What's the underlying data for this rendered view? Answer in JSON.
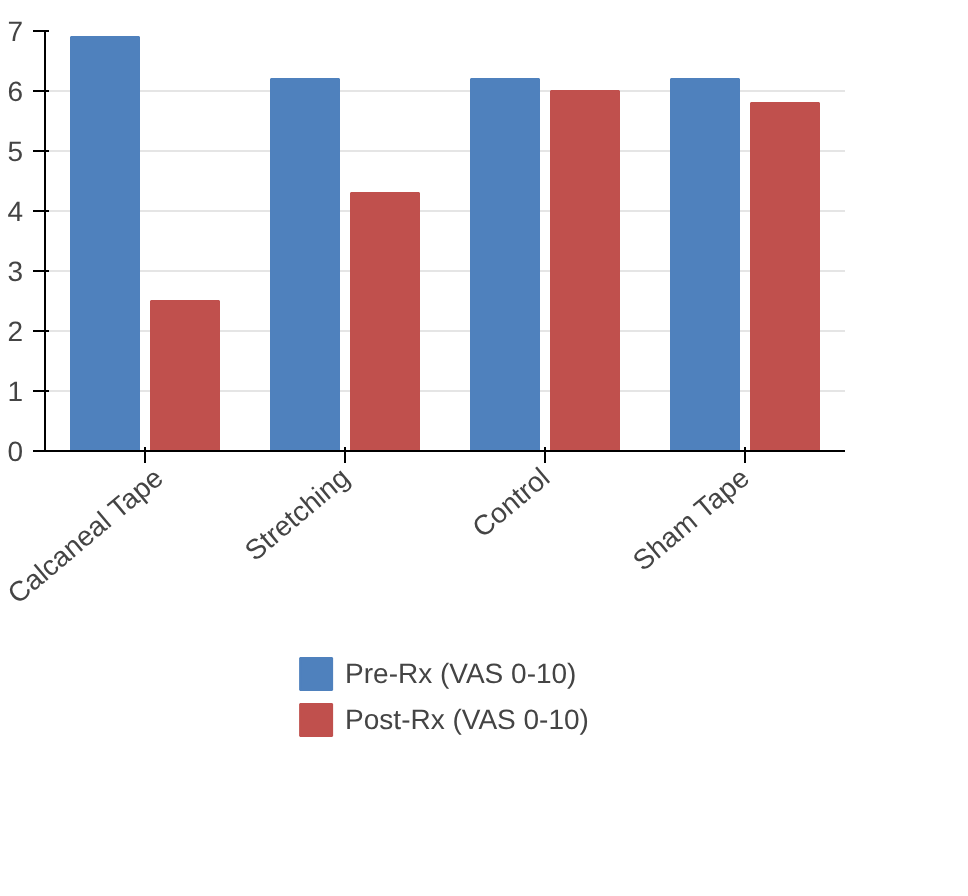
{
  "chart_data": {
    "type": "bar",
    "categories": [
      "Calcaneal Tape",
      "Stretching",
      "Control",
      "Sham Tape"
    ],
    "series": [
      {
        "name": "Pre-Rx (VAS 0-10)",
        "color": "#4f81bd",
        "values": [
          6.9,
          6.2,
          6.2,
          6.2
        ]
      },
      {
        "name": "Post-Rx (VAS 0-10)",
        "color": "#c0504d",
        "values": [
          2.5,
          4.3,
          6.0,
          5.8
        ]
      }
    ],
    "ylim": [
      0,
      7
    ],
    "yticks": [
      0,
      1,
      2,
      3,
      4,
      5,
      6,
      7
    ],
    "grid": "y",
    "legend": "bottom"
  }
}
